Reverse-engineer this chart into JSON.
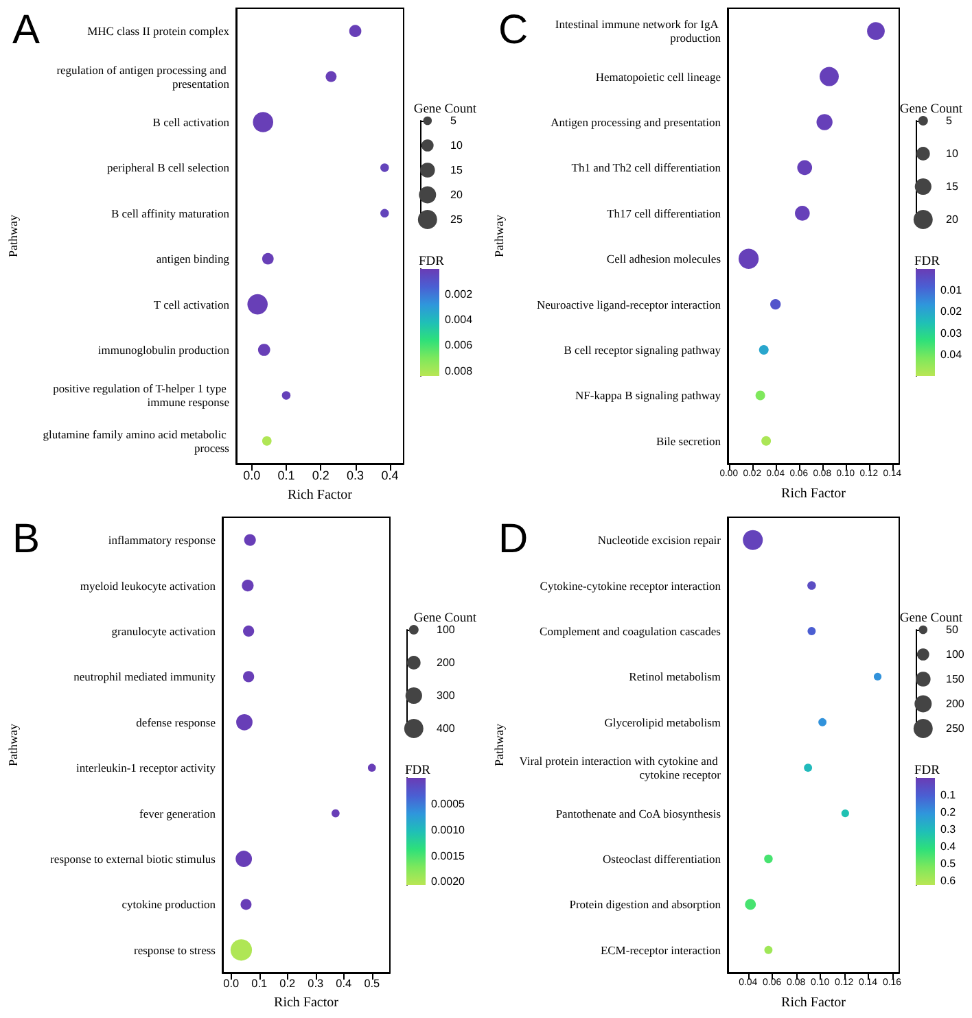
{
  "chart_data": [
    {
      "type": "bubble",
      "title": "A",
      "xlabel": "Rich Factor",
      "ylabel": "Pathway",
      "legend_title": "Gene Count",
      "clabel": "FDR",
      "orientation": "horizontal",
      "categories": [
        "MHC class II protein complex",
        "regulation of antigen processing and presentation",
        "B cell activation",
        "peripheral B cell selection",
        "B cell affinity maturation",
        "antigen binding",
        "T cell activation",
        "immunoglobulin production",
        "positive regulation of T-helper 1 type immune response",
        "glutamine family amino acid metabolic process"
      ],
      "values": [
        0.3,
        0.23,
        0.033,
        0.385,
        0.385,
        0.047,
        0.017,
        0.036,
        0.1,
        0.044
      ],
      "sizes": [
        10,
        8,
        28,
        5,
        5,
        9,
        28,
        10,
        5,
        6
      ],
      "cvalues": [
        0.0001,
        0.0001,
        0.0001,
        0.0003,
        0.0003,
        0.0001,
        0.0001,
        0.0001,
        0.0002,
        0.0082
      ],
      "size_legend": [
        5,
        10,
        15,
        20,
        25
      ],
      "clim": [
        0,
        0.0084
      ],
      "cticks": [
        0.002,
        0.004,
        0.006,
        0.008
      ],
      "xlim": [
        -0.045,
        0.44
      ],
      "xticks": [
        {
          "value": 0,
          "label": "0.0"
        },
        {
          "value": 0.1,
          "label": "0.1"
        },
        {
          "value": 0.2,
          "label": "0.2"
        },
        {
          "value": 0.3,
          "label": "0.3"
        },
        {
          "value": 0.4,
          "label": "0.4"
        }
      ]
    },
    {
      "type": "bubble",
      "title": "C",
      "xlabel": "Rich Factor",
      "ylabel": "Pathway",
      "legend_title": "Gene Count",
      "clabel": "FDR",
      "orientation": "horizontal",
      "categories": [
        "Intestinal immune network for IgA production",
        "Hematopoietic cell lineage",
        "Antigen processing and presentation",
        "Th1 and Th2 cell differentiation",
        "Th17 cell differentiation",
        "Cell adhesion molecules",
        "Neuroactive ligand-receptor interaction",
        "B cell receptor signaling pathway",
        "NF-kappa B signaling pathway",
        "Bile secretion"
      ],
      "values": [
        0.126,
        0.086,
        0.082,
        0.065,
        0.063,
        0.017,
        0.04,
        0.03,
        0.027,
        0.032
      ],
      "sizes": [
        17,
        20,
        14,
        12,
        12,
        22,
        6,
        5,
        5,
        5
      ],
      "cvalues": [
        0.001,
        0.001,
        0.001,
        0.001,
        0.001,
        0.001,
        0.006,
        0.02,
        0.042,
        0.048
      ],
      "size_legend": [
        5,
        10,
        15,
        20
      ],
      "clim": [
        0,
        0.05
      ],
      "cticks": [
        0.01,
        0.02,
        0.03,
        0.04
      ],
      "xlim": [
        -0.001,
        0.146
      ],
      "xticks": [
        {
          "value": 0,
          "label": "0.00"
        },
        {
          "value": 0.02,
          "label": "0.02"
        },
        {
          "value": 0.04,
          "label": "0.04"
        },
        {
          "value": 0.06,
          "label": "0.06"
        },
        {
          "value": 0.08,
          "label": "0.08"
        },
        {
          "value": 0.1,
          "label": "0.10"
        },
        {
          "value": 0.12,
          "label": "0.12"
        },
        {
          "value": 0.14,
          "label": "0.14"
        }
      ]
    },
    {
      "type": "bubble",
      "title": "B",
      "xlabel": "Rich Factor",
      "ylabel": "Pathway",
      "legend_title": "Gene Count",
      "clabel": "FDR",
      "orientation": "horizontal",
      "categories": [
        "inflammatory response",
        "myeloid leukocyte activation",
        "granulocyte activation",
        "neutrophil mediated immunity",
        "defense response",
        "interleukin-1 receptor activity",
        "fever generation",
        "response to external biotic stimulus",
        "cytokine production",
        "response to stress"
      ],
      "values": [
        0.067,
        0.059,
        0.062,
        0.062,
        0.047,
        0.5,
        0.371,
        0.045,
        0.053,
        0.036
      ],
      "sizes": [
        150,
        150,
        135,
        135,
        290,
        70,
        70,
        290,
        130,
        500
      ],
      "cvalues": [
        2e-05,
        2e-05,
        2e-05,
        2e-05,
        2e-05,
        2e-05,
        2e-05,
        2e-05,
        2e-05,
        0.002
      ],
      "size_legend": [
        100,
        200,
        300,
        400
      ],
      "clim": [
        0,
        0.00206
      ],
      "cticks": [
        {
          "value": 0.0005,
          "label": "0.0005"
        },
        {
          "value": 0.001,
          "label": "0.0010"
        },
        {
          "value": 0.0015,
          "label": "0.0015"
        },
        {
          "value": 0.002,
          "label": "0.0020"
        }
      ],
      "xlim": [
        -0.031,
        0.564
      ],
      "xticks": [
        {
          "value": 0,
          "label": "0.0"
        },
        {
          "value": 0.1,
          "label": "0.1"
        },
        {
          "value": 0.2,
          "label": "0.2"
        },
        {
          "value": 0.3,
          "label": "0.3"
        },
        {
          "value": 0.4,
          "label": "0.4"
        },
        {
          "value": 0.5,
          "label": "0.5"
        }
      ]
    },
    {
      "type": "bubble",
      "title": "D",
      "xlabel": "Rich Factor",
      "ylabel": "Pathway",
      "legend_title": "Gene Count",
      "clabel": "FDR",
      "orientation": "horizontal",
      "categories": [
        "Nucleotide excision repair",
        "Cytokine-cytokine receptor interaction",
        "Complement and coagulation cascades",
        "Retinol metabolism",
        "Glycerolipid metabolism",
        "Viral protein interaction with cytokine and cytokine receptor",
        "Pantothenate and CoA biosynthesis",
        "Osteoclast differentiation",
        "Protein digestion and absorption",
        "ECM-receptor interaction"
      ],
      "values": [
        0.044,
        0.093,
        0.093,
        0.148,
        0.102,
        0.09,
        0.121,
        0.057,
        0.042,
        0.057
      ],
      "sizes": [
        270,
        50,
        45,
        40,
        45,
        45,
        40,
        50,
        80,
        45
      ],
      "cvalues": [
        0.02,
        0.05,
        0.1,
        0.2,
        0.2,
        0.3,
        0.32,
        0.45,
        0.45,
        0.58
      ],
      "size_legend": [
        50,
        100,
        150,
        200,
        250
      ],
      "clim": [
        0,
        0.625
      ],
      "cticks": [
        0.1,
        0.2,
        0.3,
        0.4,
        0.5,
        0.6
      ],
      "xlim": [
        0.023,
        0.166
      ],
      "xticks": [
        {
          "value": 0.04,
          "label": "0.04"
        },
        {
          "value": 0.06,
          "label": "0.06"
        },
        {
          "value": 0.08,
          "label": "0.08"
        },
        {
          "value": 0.1,
          "label": "0.10"
        },
        {
          "value": 0.12,
          "label": "0.12"
        },
        {
          "value": 0.14,
          "label": "0.14"
        },
        {
          "value": 0.16,
          "label": "0.16"
        }
      ]
    }
  ]
}
